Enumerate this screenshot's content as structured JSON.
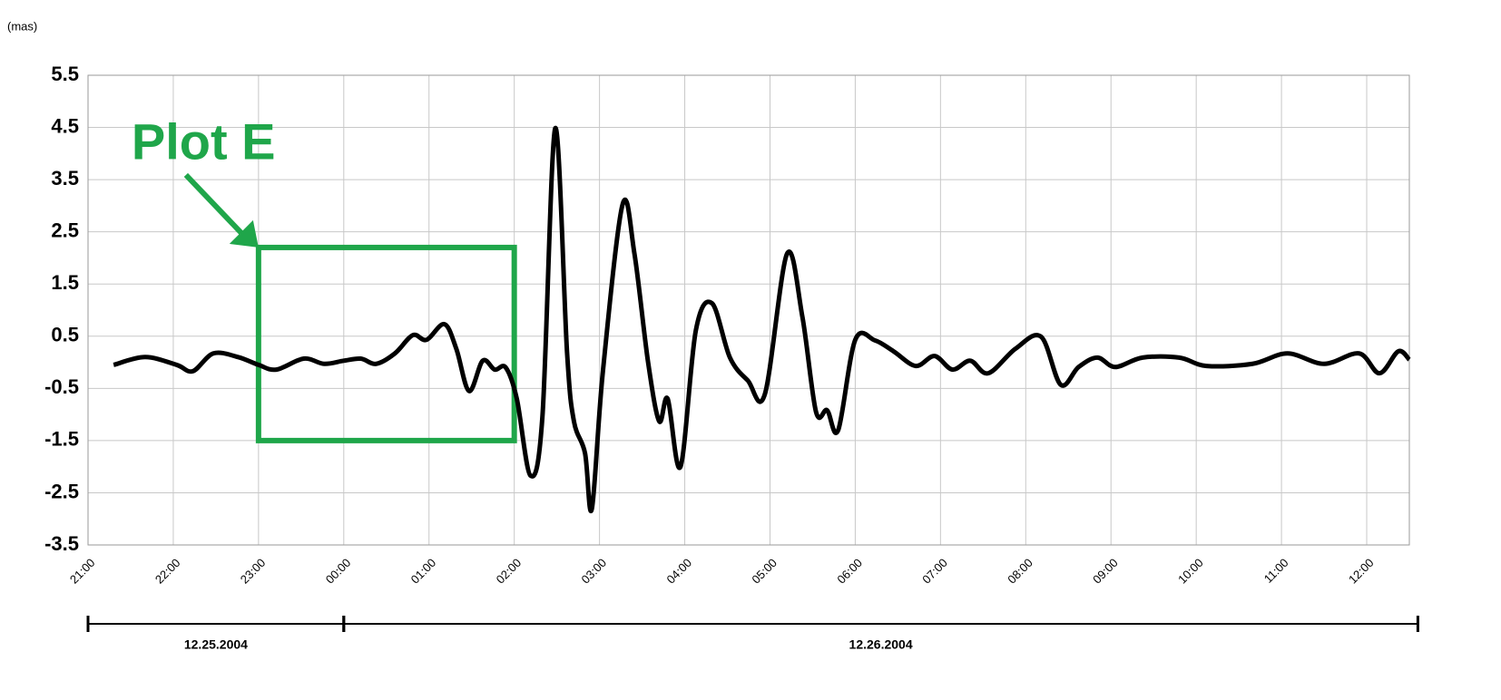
{
  "chart_data": {
    "type": "line",
    "y_unit": "(mas)",
    "xlim": [
      0,
      15.5
    ],
    "ylim": [
      -3.5,
      5.5
    ],
    "xticks": [
      {
        "value": 0,
        "label": "21:00"
      },
      {
        "value": 1,
        "label": "22:00"
      },
      {
        "value": 2,
        "label": "23:00"
      },
      {
        "value": 3,
        "label": "00:00"
      },
      {
        "value": 4,
        "label": "01:00"
      },
      {
        "value": 5,
        "label": "02:00"
      },
      {
        "value": 6,
        "label": "03:00"
      },
      {
        "value": 7,
        "label": "04:00"
      },
      {
        "value": 8,
        "label": "05:00"
      },
      {
        "value": 9,
        "label": "06:00"
      },
      {
        "value": 10,
        "label": "07:00"
      },
      {
        "value": 11,
        "label": "08:00"
      },
      {
        "value": 12,
        "label": "09:00"
      },
      {
        "value": 13,
        "label": "10:00"
      },
      {
        "value": 14,
        "label": "11:00"
      },
      {
        "value": 15,
        "label": "12:00"
      }
    ],
    "yticks": [
      5.5,
      4.5,
      3.5,
      2.5,
      1.5,
      0.5,
      -0.5,
      -1.5,
      -2.5,
      -3.5
    ],
    "grid": true,
    "series": [
      {
        "color": "#000000",
        "x": [
          0.3,
          0.67,
          1.04,
          1.23,
          1.47,
          1.76,
          2.0,
          2.21,
          2.53,
          2.77,
          3.0,
          3.2,
          3.38,
          3.6,
          3.81,
          3.97,
          4.18,
          4.32,
          4.47,
          4.63,
          4.77,
          4.9,
          5.03,
          5.19,
          5.33,
          5.48,
          5.62,
          5.7,
          5.83,
          5.91,
          6.04,
          6.27,
          6.41,
          6.57,
          6.7,
          6.8,
          6.95,
          7.13,
          7.32,
          7.53,
          7.74,
          7.94,
          8.2,
          8.38,
          8.54,
          8.67,
          8.8,
          9.0,
          9.23,
          9.45,
          9.71,
          9.93,
          10.14,
          10.35,
          10.56,
          10.88,
          11.18,
          11.41,
          11.62,
          11.84,
          12.05,
          12.37,
          12.8,
          13.12,
          13.66,
          14.07,
          14.5,
          14.91,
          15.15,
          15.37,
          15.5
        ],
        "values": [
          -0.05,
          0.1,
          -0.05,
          -0.17,
          0.17,
          0.1,
          -0.05,
          -0.14,
          0.07,
          -0.03,
          0.03,
          0.07,
          -0.03,
          0.17,
          0.52,
          0.43,
          0.73,
          0.26,
          -0.55,
          0.03,
          -0.14,
          -0.1,
          -0.7,
          -2.17,
          -1.05,
          4.48,
          0.17,
          -1.13,
          -1.74,
          -2.81,
          -0.17,
          3.02,
          2.08,
          0.0,
          -1.13,
          -0.7,
          -2.0,
          0.61,
          1.13,
          0.09,
          -0.35,
          -0.61,
          2.08,
          0.87,
          -0.95,
          -0.92,
          -1.3,
          0.43,
          0.42,
          0.21,
          -0.07,
          0.12,
          -0.14,
          0.03,
          -0.21,
          0.26,
          0.49,
          -0.43,
          -0.09,
          0.09,
          -0.09,
          0.09,
          0.09,
          -0.07,
          -0.03,
          0.17,
          -0.03,
          0.17,
          -0.21,
          0.21,
          0.05
        ]
      }
    ],
    "annotation": {
      "text": "Plot E",
      "color": "#1fa64a",
      "x": [
        2,
        5
      ],
      "y": [
        -1.5,
        2.2
      ]
    },
    "date_ranges": [
      {
        "label": "12.25.2004",
        "x": [
          0,
          3
        ]
      },
      {
        "label": "12.26.2004",
        "x": [
          3,
          15.6
        ]
      }
    ]
  }
}
